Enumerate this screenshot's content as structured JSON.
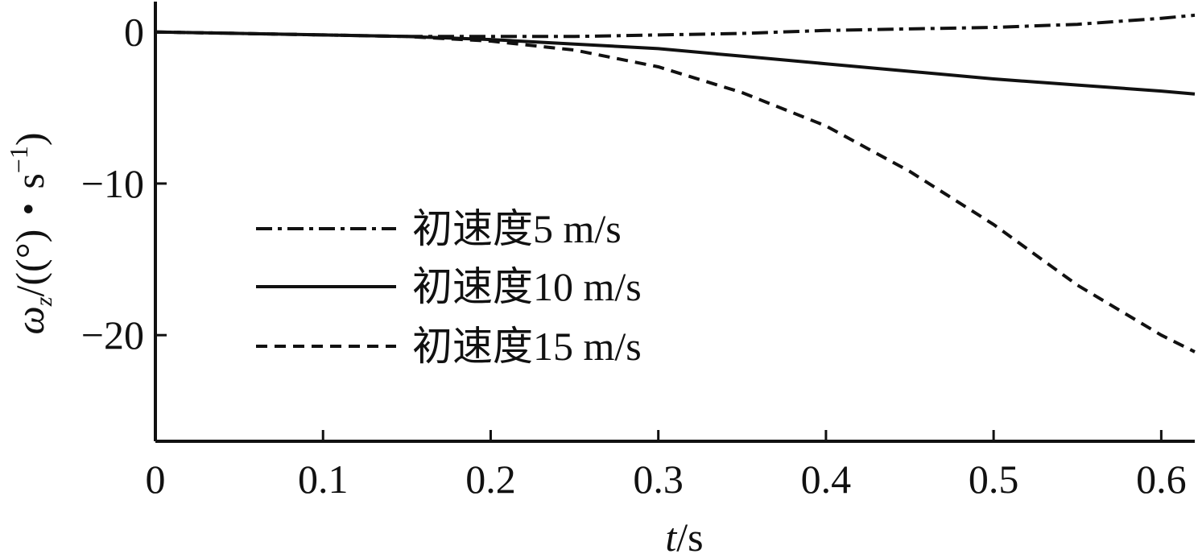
{
  "chart_data": {
    "type": "line",
    "title": "",
    "xlabel": "t/s",
    "ylabel": "ωz/((°)·s⁻¹)",
    "xlim": [
      0,
      0.62
    ],
    "ylim": [
      -27,
      2
    ],
    "x_ticks": [
      {
        "value": 0,
        "label": "0"
      },
      {
        "value": 0.1,
        "label": "0.1"
      },
      {
        "value": 0.2,
        "label": "0.2"
      },
      {
        "value": 0.3,
        "label": "0.3"
      },
      {
        "value": 0.4,
        "label": "0.4"
      },
      {
        "value": 0.5,
        "label": "0.5"
      },
      {
        "value": 0.6,
        "label": "0.6"
      }
    ],
    "y_ticks": [
      {
        "value": 0,
        "label": "0"
      },
      {
        "value": -10,
        "label": "−10"
      },
      {
        "value": -20,
        "label": "−20"
      }
    ],
    "grid": false,
    "legend_position": "center-left",
    "series": [
      {
        "name": "初速度5 m/s",
        "dash": "dashdot",
        "x": [
          0,
          0.05,
          0.1,
          0.15,
          0.2,
          0.25,
          0.3,
          0.35,
          0.4,
          0.45,
          0.5,
          0.55,
          0.6,
          0.62
        ],
        "y": [
          0,
          -0.1,
          -0.2,
          -0.3,
          -0.3,
          -0.3,
          -0.2,
          -0.1,
          0.1,
          0.2,
          0.3,
          0.5,
          0.9,
          1.1
        ]
      },
      {
        "name": "初速度10 m/s",
        "dash": "solid",
        "x": [
          0,
          0.05,
          0.1,
          0.15,
          0.2,
          0.25,
          0.3,
          0.35,
          0.4,
          0.45,
          0.5,
          0.55,
          0.6,
          0.62
        ],
        "y": [
          0,
          -0.1,
          -0.2,
          -0.3,
          -0.5,
          -0.8,
          -1.1,
          -1.6,
          -2.1,
          -2.6,
          -3.1,
          -3.5,
          -3.9,
          -4.1
        ]
      },
      {
        "name": "初速度15 m/s",
        "dash": "dashed",
        "x": [
          0,
          0.05,
          0.1,
          0.15,
          0.2,
          0.25,
          0.3,
          0.35,
          0.4,
          0.45,
          0.5,
          0.55,
          0.6,
          0.62
        ],
        "y": [
          0,
          -0.1,
          -0.2,
          -0.3,
          -0.6,
          -1.2,
          -2.3,
          -4.0,
          -6.2,
          -9.2,
          -12.7,
          -16.7,
          -20.0,
          -21.1
        ]
      }
    ]
  }
}
